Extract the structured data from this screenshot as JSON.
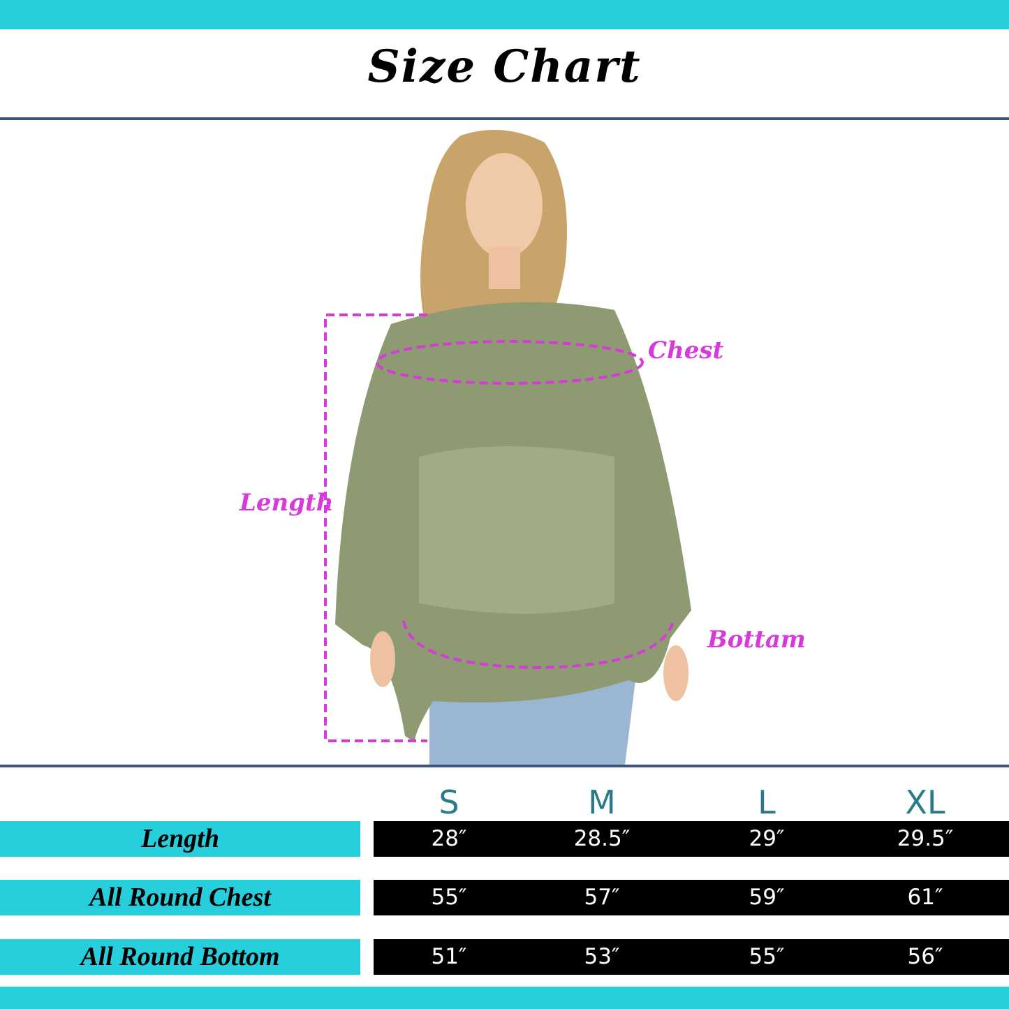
{
  "title": "Size Chart",
  "colors": {
    "accent": "#26cfdb",
    "rule": "#3e5478",
    "measure": "#d63ad9",
    "size_header": "#2a7a8a"
  },
  "photo": {
    "labels": {
      "length": "Length",
      "chest": "Chest",
      "bottom": "Bottam"
    }
  },
  "table": {
    "sizes": [
      "S",
      "M",
      "L",
      "XL"
    ],
    "rows": [
      {
        "label": "Length",
        "values": [
          "28″",
          "28.5″",
          "29″",
          "29.5″"
        ]
      },
      {
        "label": "All Round Chest",
        "values": [
          "55″",
          "57″",
          "59″",
          "61″"
        ]
      },
      {
        "label": "All Round Bottom",
        "values": [
          "51″",
          "53″",
          "55″",
          "56″"
        ]
      }
    ]
  }
}
